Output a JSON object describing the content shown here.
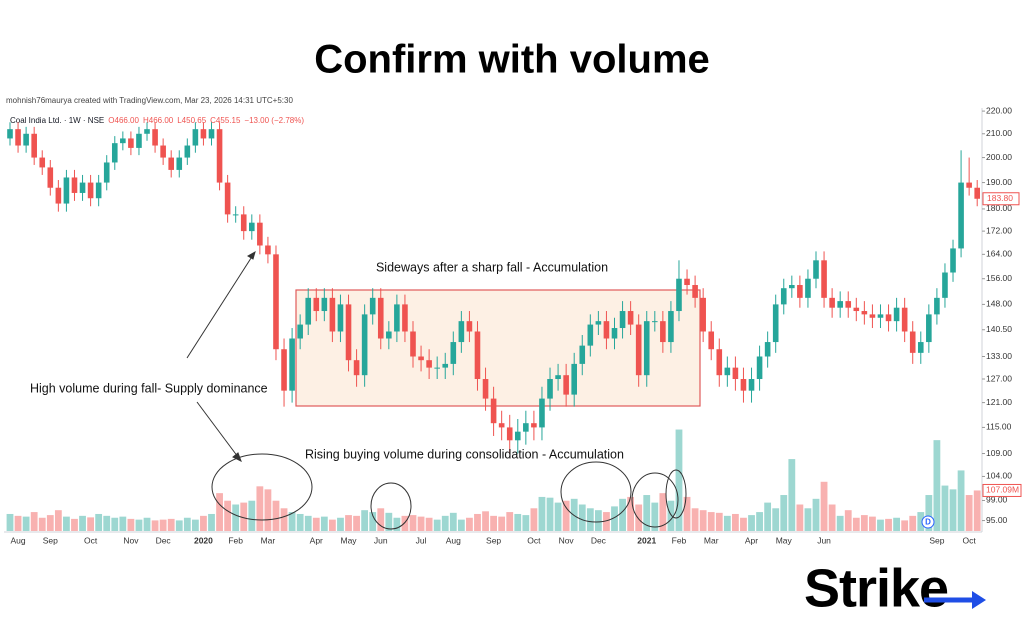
{
  "title": "Confirm with volume",
  "logo": "Strike",
  "chart_data": {
    "type": "candlestick",
    "credit": "mohnish76maurya created with TradingView.com, Mar 23, 2026 14:31 UTC+5:30",
    "symbol": "Coal India Ltd. · 1W · NSE",
    "ohlc_legend": [
      "O466.00",
      "H466.00",
      "L450.65",
      "C455.15",
      "−13.00 (−2.78%)"
    ],
    "annotations": [
      "Sideways after a sharp fall - Accumulation",
      "High volume during fall- Supply dominance",
      "Rising buying volume during consolidation - Accumulation"
    ],
    "dividend_badge": "D",
    "log_scale": true,
    "grid": false,
    "up_color": "#26a69a",
    "down_color": "#ef5350",
    "ylim": [
      92.8,
      221.4
    ],
    "yticks": [
      {
        "value": 220,
        "label": "220.00"
      },
      {
        "value": 210,
        "label": "210.00"
      },
      {
        "value": 200,
        "label": "200.00"
      },
      {
        "value": 190,
        "label": "190.00"
      },
      {
        "value": 180,
        "label": "180.00"
      },
      {
        "value": 172,
        "label": "172.00"
      },
      {
        "value": 164,
        "label": "164.00"
      },
      {
        "value": 156,
        "label": "156.00"
      },
      {
        "value": 148,
        "label": "148.00"
      },
      {
        "value": 140.5,
        "label": "140.50"
      },
      {
        "value": 133,
        "label": "133.00"
      },
      {
        "value": 127,
        "label": "127.00"
      },
      {
        "value": 121,
        "label": "121.00"
      },
      {
        "value": 115,
        "label": "115.00"
      },
      {
        "value": 109,
        "label": "109.00"
      },
      {
        "value": 104,
        "label": "104.00"
      },
      {
        "value": 99,
        "label": "99.00"
      },
      {
        "value": 95,
        "label": "95.00"
      }
    ],
    "y2lim": [
      0,
      280
    ],
    "price_marker": {
      "value": 183.8,
      "label": "183.80"
    },
    "volume_marker": {
      "value": 107.09,
      "label": "107.09M"
    },
    "categories": [
      null,
      "Aug",
      null,
      null,
      null,
      "Sep",
      null,
      null,
      null,
      null,
      "Oct",
      null,
      null,
      null,
      null,
      "Nov",
      null,
      null,
      null,
      "Dec",
      null,
      null,
      null,
      null,
      "2020",
      null,
      null,
      null,
      "Feb",
      null,
      null,
      null,
      "Mar",
      null,
      null,
      null,
      null,
      null,
      "Apr",
      null,
      null,
      null,
      "May",
      null,
      null,
      null,
      "Jun",
      null,
      null,
      null,
      null,
      "Jul",
      null,
      null,
      null,
      "Aug",
      null,
      null,
      null,
      null,
      "Sep",
      null,
      null,
      null,
      null,
      "Oct",
      null,
      null,
      null,
      "Nov",
      null,
      null,
      null,
      "Dec",
      null,
      null,
      null,
      null,
      null,
      "2021",
      null,
      null,
      null,
      "Feb",
      null,
      null,
      null,
      "Mar",
      null,
      null,
      null,
      null,
      "Apr",
      null,
      null,
      null,
      "May",
      null,
      null,
      null,
      null,
      "Jun",
      null,
      null,
      null,
      null,
      null,
      null,
      null,
      null,
      null,
      null,
      null,
      null,
      null,
      "Sep",
      null,
      null,
      null,
      "Oct",
      null
    ],
    "open": [
      208,
      212,
      205,
      210,
      200,
      196,
      188,
      182,
      192,
      186,
      190,
      184,
      190,
      198,
      206,
      208,
      204,
      210,
      212,
      205,
      200,
      195,
      200,
      205,
      212,
      208,
      212,
      190,
      178,
      178,
      172,
      175,
      167,
      164,
      135,
      124,
      138,
      142,
      150,
      146,
      150,
      140,
      148,
      132,
      128,
      145,
      150,
      138,
      140,
      148,
      140,
      133,
      132,
      130,
      130,
      131,
      137,
      143,
      140,
      127,
      122,
      116,
      115,
      112,
      114,
      116,
      115,
      122,
      127,
      128,
      123,
      131,
      136,
      142,
      143,
      138,
      141,
      146,
      142,
      128,
      143,
      143,
      137,
      146,
      156,
      154,
      150,
      140,
      135,
      128,
      130,
      127,
      124,
      127,
      133,
      137,
      148,
      153,
      154,
      150,
      156,
      162,
      150,
      147,
      149,
      147,
      146,
      145,
      144,
      145,
      143,
      147,
      140,
      134,
      137,
      145,
      150,
      158,
      166,
      190,
      188
    ],
    "high": [
      215,
      215,
      213,
      213,
      203,
      199,
      191,
      195,
      195,
      193,
      193,
      193,
      201,
      209,
      211,
      211,
      213,
      215,
      215,
      208,
      203,
      203,
      208,
      215,
      215,
      215,
      215,
      193,
      181,
      181,
      178,
      178,
      170,
      167,
      138,
      141,
      145,
      153,
      153,
      153,
      153,
      151,
      151,
      135,
      148,
      153,
      153,
      143,
      151,
      151,
      143,
      136,
      135,
      133,
      134,
      140,
      146,
      146,
      143,
      130,
      125,
      119,
      118,
      117,
      119,
      119,
      125,
      130,
      131,
      131,
      134,
      139,
      145,
      146,
      146,
      144,
      149,
      149,
      145,
      146,
      146,
      146,
      149,
      162,
      159,
      157,
      153,
      143,
      138,
      133,
      133,
      130,
      130,
      136,
      140,
      151,
      156,
      157,
      157,
      159,
      165,
      165,
      153,
      152,
      152,
      150,
      149,
      148,
      148,
      148,
      150,
      150,
      143,
      140,
      148,
      153,
      161,
      169,
      203,
      200,
      191
    ],
    "low": [
      205,
      202,
      202,
      197,
      193,
      185,
      179,
      179,
      183,
      183,
      181,
      181,
      187,
      195,
      203,
      201,
      201,
      207,
      202,
      197,
      192,
      192,
      197,
      202,
      205,
      205,
      187,
      175,
      175,
      169,
      169,
      164,
      161,
      132,
      120,
      121,
      135,
      139,
      143,
      143,
      137,
      137,
      129,
      125,
      125,
      142,
      135,
      135,
      137,
      137,
      130,
      129,
      127,
      127,
      127,
      128,
      134,
      137,
      124,
      119,
      113,
      112,
      109,
      109,
      111,
      112,
      112,
      119,
      124,
      120,
      120,
      128,
      133,
      139,
      135,
      135,
      138,
      139,
      125,
      125,
      140,
      134,
      134,
      143,
      151,
      147,
      137,
      132,
      125,
      125,
      124,
      121,
      121,
      124,
      130,
      134,
      145,
      150,
      147,
      147,
      153,
      147,
      144,
      144,
      144,
      143,
      142,
      141,
      141,
      140,
      140,
      137,
      131,
      131,
      134,
      142,
      147,
      155,
      163,
      185,
      181
    ],
    "close": [
      212,
      205,
      210,
      200,
      196,
      188,
      182,
      192,
      186,
      190,
      184,
      190,
      198,
      206,
      208,
      204,
      210,
      212,
      205,
      200,
      195,
      200,
      205,
      212,
      208,
      212,
      190,
      178,
      178,
      172,
      175,
      167,
      164,
      135,
      124,
      138,
      142,
      150,
      146,
      150,
      140,
      148,
      132,
      128,
      145,
      150,
      138,
      140,
      148,
      140,
      133,
      132,
      130,
      130,
      131,
      137,
      143,
      140,
      127,
      122,
      116,
      115,
      112,
      114,
      116,
      115,
      122,
      127,
      128,
      123,
      131,
      136,
      142,
      143,
      138,
      141,
      146,
      142,
      128,
      143,
      143,
      137,
      146,
      156,
      154,
      150,
      140,
      135,
      128,
      130,
      127,
      124,
      127,
      133,
      137,
      148,
      153,
      154,
      150,
      156,
      162,
      150,
      147,
      149,
      147,
      146,
      145,
      144,
      145,
      143,
      147,
      140,
      134,
      137,
      145,
      150,
      158,
      166,
      190,
      188,
      183.8
    ],
    "volume": [
      45,
      40,
      38,
      50,
      35,
      42,
      55,
      38,
      32,
      40,
      36,
      45,
      40,
      35,
      38,
      32,
      30,
      35,
      28,
      30,
      32,
      28,
      35,
      30,
      40,
      45,
      100,
      80,
      70,
      75,
      80,
      118,
      110,
      80,
      60,
      50,
      45,
      40,
      35,
      38,
      30,
      35,
      42,
      40,
      55,
      50,
      60,
      48,
      35,
      40,
      42,
      38,
      35,
      30,
      40,
      48,
      30,
      35,
      45,
      52,
      40,
      38,
      50,
      45,
      42,
      60,
      90,
      88,
      75,
      80,
      85,
      70,
      60,
      55,
      50,
      65,
      85,
      90,
      70,
      95,
      75,
      100,
      80,
      268,
      90,
      60,
      55,
      50,
      48,
      40,
      45,
      35,
      42,
      50,
      75,
      60,
      95,
      190,
      70,
      60,
      85,
      130,
      70,
      40,
      55,
      35,
      42,
      38,
      30,
      32,
      35,
      28,
      40,
      50,
      95,
      240,
      120,
      110,
      160,
      95,
      107.09
    ]
  }
}
